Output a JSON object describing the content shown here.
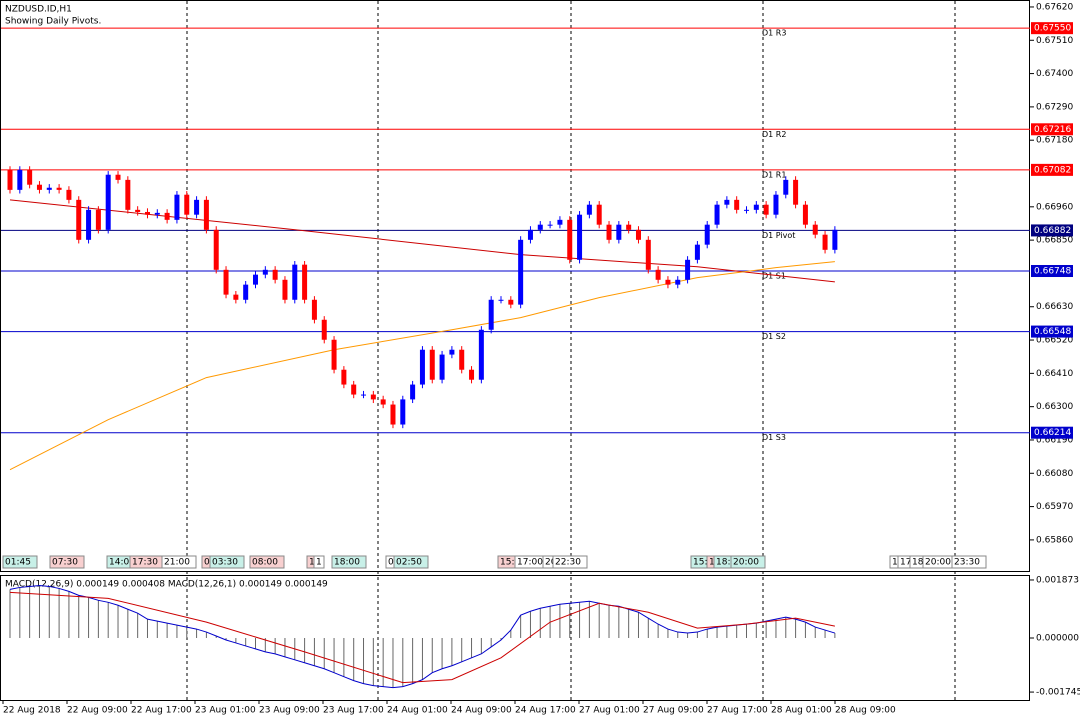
{
  "chart_data": {
    "type": "candlestick",
    "title": "NZDUSD.ID,H1",
    "subtitle": "Showing Daily Pivots.",
    "ylim": [
      0.65754,
      0.67643
    ],
    "yticks": [
      {
        "value": 0.6762,
        "label": "0.67620"
      },
      {
        "value": 0.6751,
        "label": "0.67510"
      },
      {
        "value": 0.674,
        "label": "0.67400"
      },
      {
        "value": 0.6729,
        "label": "0.67290"
      },
      {
        "value": 0.6718,
        "label": "0.67180"
      },
      {
        "value": 0.6696,
        "label": "0.66960"
      },
      {
        "value": 0.6685,
        "label": "0.66850"
      },
      {
        "value": 0.6663,
        "label": "0.66630"
      },
      {
        "value": 0.6652,
        "label": "0.66520"
      },
      {
        "value": 0.6641,
        "label": "0.66410"
      },
      {
        "value": 0.663,
        "label": "0.66300"
      },
      {
        "value": 0.6619,
        "label": "0.66190"
      },
      {
        "value": 0.6608,
        "label": "0.66080"
      },
      {
        "value": 0.6597,
        "label": "0.65970"
      },
      {
        "value": 0.6586,
        "label": "0.65860"
      }
    ],
    "up_color": "#0000ff",
    "down_color": "#ff0000",
    "candles": {
      "open": [
        0.67082,
        0.67016,
        0.67082,
        0.67033,
        0.67016,
        0.67023,
        0.67016,
        0.66983,
        0.66851,
        0.6695,
        0.66884,
        0.67066,
        0.67049,
        0.6695,
        0.66943,
        0.66934,
        0.6694,
        0.66917,
        0.67,
        0.66934,
        0.66983,
        0.66884,
        0.66752,
        0.6667,
        0.66653,
        0.66703,
        0.66736,
        0.66752,
        0.66719,
        0.66653,
        0.66769,
        0.66653,
        0.66587,
        0.66521,
        0.66422,
        0.66373,
        0.6634,
        0.6634,
        0.66324,
        0.66307,
        0.66241,
        0.66324,
        0.66373,
        0.66488,
        0.66389,
        0.66472,
        0.66488,
        0.66422,
        0.66389,
        0.66554,
        0.66653,
        0.66653,
        0.66637,
        0.66851,
        0.66884,
        0.66901,
        0.66901,
        0.66917,
        0.66785,
        0.66934,
        0.66967,
        0.66901,
        0.66851,
        0.66901,
        0.66884,
        0.66851,
        0.66752,
        0.66719,
        0.66703,
        0.66719,
        0.66785,
        0.66835,
        0.66901,
        0.66967,
        0.66983,
        0.6695,
        0.6695,
        0.66967,
        0.66934,
        0.67,
        0.67049,
        0.66967,
        0.66901,
        0.66868,
        0.66818
      ],
      "high": [
        0.67094,
        0.67094,
        0.67094,
        0.67045,
        0.67035,
        0.67035,
        0.67028,
        0.66995,
        0.66962,
        0.66962,
        0.67078,
        0.67078,
        0.67061,
        0.66962,
        0.66955,
        0.66952,
        0.66952,
        0.67012,
        0.67012,
        0.66995,
        0.66995,
        0.66896,
        0.66764,
        0.66682,
        0.66715,
        0.66748,
        0.66764,
        0.66764,
        0.66731,
        0.66781,
        0.66781,
        0.66665,
        0.66599,
        0.66533,
        0.66434,
        0.66385,
        0.66352,
        0.66352,
        0.66336,
        0.66319,
        0.66336,
        0.66385,
        0.665,
        0.665,
        0.66484,
        0.665,
        0.665,
        0.66434,
        0.66566,
        0.66665,
        0.66665,
        0.66665,
        0.66863,
        0.66896,
        0.66913,
        0.66913,
        0.66929,
        0.66929,
        0.66946,
        0.66979,
        0.66979,
        0.66913,
        0.66913,
        0.66913,
        0.66896,
        0.66863,
        0.66764,
        0.66731,
        0.66731,
        0.66797,
        0.66847,
        0.66913,
        0.66979,
        0.66995,
        0.66995,
        0.66962,
        0.66979,
        0.66979,
        0.67012,
        0.67061,
        0.67061,
        0.66979,
        0.66913,
        0.6688,
        0.66896
      ],
      "low": [
        0.67004,
        0.67004,
        0.67021,
        0.67004,
        0.67004,
        0.67004,
        0.66971,
        0.66839,
        0.66839,
        0.66872,
        0.66872,
        0.67037,
        0.66938,
        0.66931,
        0.66922,
        0.66922,
        0.66905,
        0.66905,
        0.66922,
        0.66922,
        0.66872,
        0.6674,
        0.66658,
        0.66641,
        0.66641,
        0.66691,
        0.66724,
        0.66707,
        0.66641,
        0.66641,
        0.66641,
        0.66575,
        0.66509,
        0.6641,
        0.66361,
        0.66328,
        0.66328,
        0.66312,
        0.66295,
        0.66229,
        0.66229,
        0.66312,
        0.66361,
        0.66377,
        0.66377,
        0.6646,
        0.6641,
        0.66377,
        0.66377,
        0.66542,
        0.66641,
        0.66625,
        0.66625,
        0.66839,
        0.66872,
        0.66889,
        0.66889,
        0.66773,
        0.66773,
        0.66922,
        0.66889,
        0.66839,
        0.66839,
        0.66872,
        0.66839,
        0.6674,
        0.66707,
        0.66691,
        0.66691,
        0.66707,
        0.66773,
        0.66823,
        0.66889,
        0.66955,
        0.66938,
        0.66938,
        0.66938,
        0.66922,
        0.66922,
        0.66988,
        0.66955,
        0.66889,
        0.66856,
        0.66806,
        0.66806
      ],
      "close": [
        0.67016,
        0.67082,
        0.67033,
        0.67016,
        0.67023,
        0.67016,
        0.66983,
        0.66851,
        0.6695,
        0.66884,
        0.67066,
        0.67049,
        0.6695,
        0.66943,
        0.66934,
        0.6694,
        0.66917,
        0.67,
        0.66934,
        0.66983,
        0.66884,
        0.66752,
        0.6667,
        0.66653,
        0.66703,
        0.66736,
        0.66752,
        0.66719,
        0.66653,
        0.66769,
        0.66653,
        0.66587,
        0.66521,
        0.66422,
        0.66373,
        0.6634,
        0.6634,
        0.66324,
        0.66307,
        0.66241,
        0.66324,
        0.66373,
        0.66488,
        0.66389,
        0.66472,
        0.66488,
        0.66422,
        0.66389,
        0.66554,
        0.66653,
        0.66653,
        0.66637,
        0.66851,
        0.66884,
        0.66901,
        0.66901,
        0.66917,
        0.66785,
        0.66934,
        0.66967,
        0.66901,
        0.66851,
        0.66901,
        0.66884,
        0.66851,
        0.66752,
        0.66719,
        0.66703,
        0.66719,
        0.66785,
        0.66835,
        0.66901,
        0.66967,
        0.66983,
        0.6695,
        0.6695,
        0.66967,
        0.66934,
        0.67,
        0.67049,
        0.66967,
        0.66901,
        0.66868,
        0.66818,
        0.66884
      ]
    },
    "averages": [
      {
        "color": "#cc0000",
        "x": [
          0,
          30,
          52,
          70,
          84
        ],
        "values": [
          0.66983,
          0.66881,
          0.66802,
          0.66762,
          0.66712
        ]
      },
      {
        "color": "#ff9900",
        "x": [
          0,
          10,
          20,
          33,
          45,
          52,
          60,
          70,
          78,
          84
        ],
        "values": [
          0.66092,
          0.66257,
          0.66396,
          0.66488,
          0.66554,
          0.66594,
          0.6666,
          0.66726,
          0.66759,
          0.66779
        ]
      }
    ],
    "pivots": [
      {
        "label": "D1 R3",
        "value": 0.6755,
        "value_label": "0.67550",
        "color": "#ff0000"
      },
      {
        "label": "D1 R2",
        "value": 0.67216,
        "value_label": "0.67216",
        "color": "#ff0000"
      },
      {
        "label": "D1 R1",
        "value": 0.67082,
        "value_label": "0.67082",
        "color": "#ff0000"
      },
      {
        "label": "D1 Pivot",
        "value": 0.66882,
        "value_label": "0.66882",
        "color": "#000080"
      },
      {
        "label": "D1 S1",
        "value": 0.66748,
        "value_label": "0.66748",
        "color": "#0000cc"
      },
      {
        "label": "D1 S2",
        "value": 0.66548,
        "value_label": "0.66548",
        "color": "#0000cc"
      },
      {
        "label": "D1 S3",
        "value": 0.66214,
        "value_label": "0.66214",
        "color": "#0000cc"
      }
    ],
    "session_labels": [
      "01:45",
      "07:30",
      "14:0",
      "17:30",
      "21:00",
      "0",
      "03:30",
      "08:00",
      "1",
      "1",
      "18:00",
      "0",
      "02:50",
      "15:",
      "17:00",
      "20:",
      "22:30",
      "15:",
      "1",
      "18:",
      "20:00",
      "1",
      "17",
      "18",
      "20:00",
      "23:30"
    ],
    "x_labels": [
      "22 Aug 2018",
      "22 Aug 09:00",
      "22 Aug 17:00",
      "23 Aug 01:00",
      "23 Aug 09:00",
      "23 Aug 17:00",
      "24 Aug 01:00",
      "24 Aug 09:00",
      "24 Aug 17:00",
      "27 Aug 01:00",
      "27 Aug 09:00",
      "27 Aug 17:00",
      "28 Aug 01:00",
      "28 Aug 09:00"
    ],
    "macd": {
      "title": "MACD(12,26,9) 0.000149 0.000408 MACD(12,26,1) 0.000149 0.000149",
      "ylim": [
        -0.002001,
        0.002001
      ],
      "yticks": [
        0.001873,
        {
          "value": 0,
          "label": "0.000000"
        },
        -0.001745
      ],
      "line_color": "#0000cc",
      "signal_color": "#cc0000",
      "values": [
        0.001568,
        0.001632,
        0.001664,
        0.001696,
        0.001664,
        0.0016,
        0.001504,
        0.001376,
        0.001312,
        0.001216,
        0.001152,
        0.001056,
        0.000928,
        0.0008,
        0.000608,
        0.000544,
        0.00048,
        0.000416,
        0.000352,
        0.000288,
        0.000192,
        6.4e-05,
        -6.4e-05,
        -0.00016,
        -0.000256,
        -0.000352,
        -0.000448,
        -0.000512,
        -0.000608,
        -0.000704,
        -0.0008,
        -0.000896,
        -0.000992,
        -0.00112,
        -0.001248,
        -0.001376,
        -0.001472,
        -0.001536,
        -0.001568,
        -0.0016,
        -0.001568,
        -0.001472,
        -0.001344,
        -0.00112,
        -0.000992,
        -0.000896,
        -0.000768,
        -0.00064,
        -0.000512,
        -0.000288,
        -6.4e-05,
        0.000256,
        0.000736,
        0.000864,
        0.00096,
        0.001024,
        0.001088,
        0.00112,
        0.001152,
        0.001184,
        0.00112,
        0.001056,
        0.001024,
        0.000928,
        0.000832,
        0.00064,
        0.000448,
        0.000288,
        0.000192,
        0.00016,
        0.000192,
        0.000288,
        0.000352,
        0.000384,
        0.000416,
        0.000448,
        0.00048,
        0.000544,
        0.000608,
        0.000672,
        0.000608,
        0.000512,
        0.000352,
        0.000256,
        0.00016
      ],
      "signal": {
        "x": [
          0,
          10,
          20,
          30,
          40,
          45,
          50,
          55,
          60,
          65,
          70,
          75,
          80,
          84
        ],
        "values": [
          0.001472,
          0.00128,
          0.000512,
          -0.000448,
          -0.00144,
          -0.001344,
          -0.00064,
          0.000512,
          0.00112,
          0.000832,
          0.00032,
          0.000448,
          0.00064,
          0.000384
        ]
      }
    }
  }
}
